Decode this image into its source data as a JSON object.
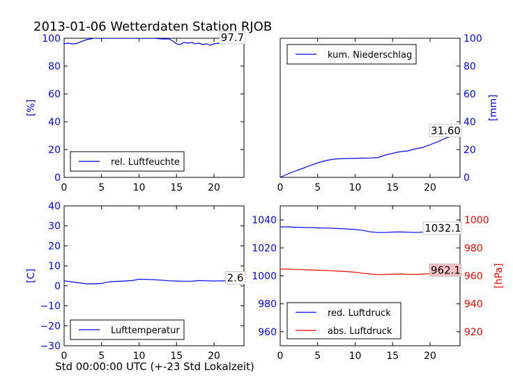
{
  "figure": {
    "title": "2013-01-06 Wetterdaten Station RJOB",
    "xlabel": "Std 00:00:00 UTC (+-23 Std Lokalzeit)"
  },
  "colors": {
    "axis_left": "#0000ff",
    "axis_right_pressure": "#ff0000",
    "series_blue": "#0000ff",
    "series_red": "#ff0000",
    "label_box_red": "#f4c2c2"
  },
  "chart_data": [
    {
      "type": "line",
      "panel": "top-left",
      "ylabel": "[%]",
      "xlim": [
        0,
        24
      ],
      "ylim": [
        0,
        100
      ],
      "xticks": [
        0,
        5,
        10,
        15,
        20
      ],
      "yticks": [
        0,
        20,
        40,
        60,
        80,
        100
      ],
      "legend": "lower-left",
      "end_label": "97.7",
      "series": [
        {
          "name": "rel. Luftfeuchte",
          "color": "#0000ff",
          "x": [
            0,
            0.5,
            1,
            1.5,
            2,
            2.5,
            3,
            3.5,
            4,
            4.5,
            5,
            6,
            7,
            8,
            9,
            10,
            11,
            12,
            13,
            14,
            14.5,
            15,
            15.5,
            16,
            16.5,
            17,
            17.5,
            18,
            18.5,
            19,
            19.5,
            20,
            20.5,
            21,
            21.5,
            22,
            22.5,
            23,
            23.5,
            24
          ],
          "y": [
            96,
            96.5,
            96,
            96,
            97,
            98,
            99,
            99.5,
            100,
            100,
            100,
            100,
            100,
            100,
            100,
            100,
            100,
            100,
            99.5,
            99.5,
            98,
            96,
            95.5,
            97,
            96.5,
            97,
            96,
            96.5,
            95.5,
            96,
            95,
            96,
            96.5,
            96,
            97,
            97,
            97.5,
            98,
            97.5,
            97.7
          ]
        }
      ]
    },
    {
      "type": "line",
      "panel": "top-right",
      "ylabel": "[mm]",
      "xlim": [
        0,
        24
      ],
      "ylim": [
        0,
        100
      ],
      "xticks": [
        0,
        5,
        10,
        15,
        20
      ],
      "yticks": [
        0,
        20,
        40,
        60,
        80,
        100
      ],
      "legend": "top-left",
      "end_label": "31.60",
      "series": [
        {
          "name": "kum. Niederschlag",
          "color": "#0000ff",
          "x": [
            0,
            1,
            2,
            3,
            4,
            5,
            6,
            7,
            8,
            9,
            10,
            11,
            12,
            13,
            14,
            15,
            16,
            17,
            18,
            19,
            20,
            21,
            22,
            23,
            24
          ],
          "y": [
            0,
            2.5,
            4.5,
            6.5,
            8.5,
            10.5,
            12,
            13,
            13.5,
            13.6,
            13.7,
            13.8,
            13.9,
            14.2,
            16,
            17.3,
            18.5,
            19,
            20.5,
            21.5,
            23.5,
            25.5,
            28,
            30,
            31.6
          ]
        }
      ]
    },
    {
      "type": "line",
      "panel": "bottom-left",
      "ylabel": "[C]",
      "xlim": [
        0,
        24
      ],
      "ylim": [
        -30,
        40
      ],
      "xticks": [
        0,
        5,
        10,
        15,
        20
      ],
      "yticks": [
        -30,
        -20,
        -10,
        0,
        10,
        20,
        30,
        40
      ],
      "legend": "lower-left",
      "end_label": "2.6",
      "series": [
        {
          "name": "Lufttemperatur",
          "color": "#0000ff",
          "x": [
            0,
            1,
            2,
            3,
            4,
            5,
            6,
            7,
            8,
            9,
            10,
            11,
            12,
            13,
            14,
            15,
            16,
            17,
            18,
            19,
            20,
            21,
            22,
            23,
            24
          ],
          "y": [
            2.5,
            2,
            1.5,
            1,
            1,
            1.2,
            2,
            2.2,
            2.4,
            2.6,
            3.3,
            3.2,
            3.1,
            2.8,
            2.5,
            2.4,
            2.3,
            2.3,
            2.6,
            2.5,
            2.4,
            2.5,
            2.4,
            2.5,
            2.6
          ]
        }
      ]
    },
    {
      "type": "line",
      "panel": "bottom-right",
      "ylabel_right": "[hPa]",
      "xlim": [
        0,
        24
      ],
      "ylim": [
        950,
        1050
      ],
      "ylim_right": [
        910,
        1010
      ],
      "xticks": [
        0,
        5,
        10,
        15,
        20
      ],
      "yticks": [
        960,
        980,
        1000,
        1020,
        1040
      ],
      "yticks_right": [
        920,
        940,
        960,
        980,
        1000
      ],
      "legend": "lower-left",
      "end_labels": [
        "1032.1",
        "962.1"
      ],
      "series": [
        {
          "name": "red. Luftdruck",
          "color": "#0000ff",
          "axis": "left",
          "x": [
            0,
            1,
            2,
            3,
            4,
            5,
            6,
            7,
            8,
            9,
            10,
            11,
            12,
            13,
            14,
            15,
            16,
            17,
            18,
            19,
            20,
            21,
            22,
            23,
            24
          ],
          "y": [
            1035,
            1035,
            1034.8,
            1034.6,
            1034.5,
            1034.3,
            1034.2,
            1034,
            1033.8,
            1033.5,
            1033.2,
            1032.5,
            1031.5,
            1031,
            1031,
            1031.3,
            1031.4,
            1031.2,
            1031,
            1031.2,
            1031.5,
            1031.8,
            1032,
            1032,
            1032.1
          ]
        },
        {
          "name": "abs. Luftdruck",
          "color": "#ff0000",
          "axis": "right",
          "x": [
            0,
            1,
            2,
            3,
            4,
            5,
            6,
            7,
            8,
            9,
            10,
            11,
            12,
            13,
            14,
            15,
            16,
            17,
            18,
            19,
            20,
            21,
            22,
            23,
            24
          ],
          "y": [
            964.8,
            964.8,
            964.6,
            964.4,
            964.2,
            964,
            963.9,
            963.6,
            963.3,
            963,
            962.6,
            961.9,
            961.3,
            960.9,
            961,
            961.2,
            961.3,
            961.1,
            961,
            961.2,
            961.5,
            961.8,
            962,
            962,
            962.1
          ]
        }
      ]
    }
  ]
}
